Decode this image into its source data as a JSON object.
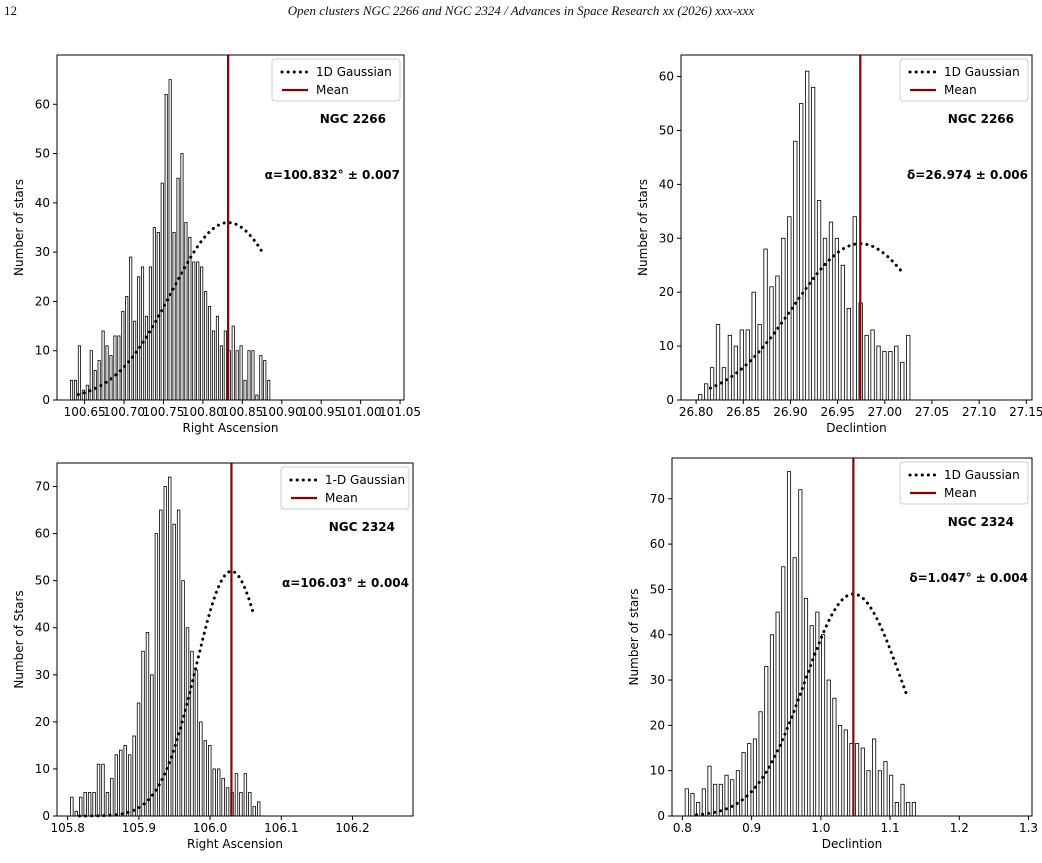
{
  "header": {
    "page_number": "12",
    "running_title": "Open clusters NGC 2266 and NGC 2324 / Advances in Space Research xx (2026) xxx-xxx"
  },
  "colors": {
    "bar_edge": "#000000",
    "bar_fill": "#ffffff",
    "mean_line": "#8b0000",
    "gaussian": "#000000"
  },
  "chart_data": [
    {
      "id": "ngc2266-ra",
      "type": "bar",
      "cluster_label": "NGC 2266",
      "xlabel": "Right Ascension",
      "ylabel": "Number of stars",
      "xlim": [
        100.615,
        101.055
      ],
      "ylim": [
        0,
        70
      ],
      "xticks": [
        100.65,
        100.7,
        100.75,
        100.8,
        100.85,
        100.9,
        100.95,
        101.0,
        101.05
      ],
      "xtick_labels": [
        "100.65",
        "100.70",
        "100.75",
        "100.80",
        "100.85",
        "100.90",
        "100.95",
        "101.00",
        "101.05"
      ],
      "yticks": [
        0,
        10,
        20,
        30,
        40,
        50,
        60
      ],
      "bin_start": 100.632,
      "bin_width": 0.005,
      "counts": [
        4,
        4,
        11,
        2,
        3,
        10,
        6,
        8,
        14,
        11,
        9,
        13,
        13,
        18,
        21,
        29,
        16,
        25,
        27,
        17,
        27,
        35,
        34,
        44,
        62,
        65,
        34,
        45,
        50,
        36,
        33,
        28,
        28,
        27,
        22,
        19,
        14,
        17,
        11,
        14,
        10,
        15,
        10,
        11,
        4,
        10,
        10,
        1,
        9,
        8,
        4
      ],
      "mean": 100.832,
      "gaussian": {
        "amplitude": 36,
        "mu": 100.832,
        "sigma": 0.072
      },
      "annotation": "α=100.832° ± 0.007",
      "legend": [
        {
          "label": "1D Gaussian",
          "style": "dotted"
        },
        {
          "label": "Mean",
          "style": "solid"
        }
      ],
      "legend_position": "top-right"
    },
    {
      "id": "ngc2266-dec",
      "type": "bar",
      "cluster_label": "NGC 2266",
      "xlabel": "Declintion",
      "ylabel": "Number of stars",
      "xlim": [
        26.784,
        27.156
      ],
      "ylim": [
        0,
        64
      ],
      "xticks": [
        26.8,
        26.85,
        26.9,
        26.95,
        27.0,
        27.05,
        27.1,
        27.15
      ],
      "xtick_labels": [
        "26.80",
        "26.85",
        "26.90",
        "26.95",
        "27.00",
        "27.05",
        "27.10",
        "27.15"
      ],
      "yticks": [
        0,
        10,
        20,
        30,
        40,
        50,
        60
      ],
      "bin_start": 26.8025,
      "bin_width": 0.0063,
      "counts": [
        1,
        3,
        6,
        14,
        6,
        12,
        10,
        13,
        13,
        20,
        14,
        28,
        21,
        23,
        30,
        34,
        48,
        55,
        61,
        58,
        37,
        30,
        33,
        30,
        25,
        17,
        34,
        18,
        12,
        13,
        10,
        9,
        9,
        10,
        7,
        12
      ],
      "mean": 26.974,
      "gaussian": {
        "amplitude": 29,
        "mu": 26.974,
        "sigma": 0.07
      },
      "annotation": "δ=26.974 ± 0.006",
      "legend": [
        {
          "label": "1D Gaussian",
          "style": "dotted"
        },
        {
          "label": "Mean",
          "style": "solid"
        }
      ],
      "legend_position": "top-right"
    },
    {
      "id": "ngc2324-ra",
      "type": "bar",
      "cluster_label": "NGC 2324",
      "xlabel": "Right Ascension",
      "ylabel": "Number of Stars",
      "xlim": [
        105.785,
        106.285
      ],
      "ylim": [
        0,
        75
      ],
      "xticks": [
        105.8,
        105.9,
        106.0,
        106.1,
        106.2
      ],
      "xtick_labels": [
        "105.8",
        "105.9",
        "106.0",
        "106.1",
        "106.2"
      ],
      "yticks": [
        0,
        10,
        20,
        30,
        40,
        50,
        60,
        70
      ],
      "bin_start": 105.804,
      "bin_width": 0.00625,
      "counts": [
        4,
        1,
        4,
        5,
        5,
        5,
        11,
        11,
        5,
        8,
        13,
        14,
        15,
        13,
        17,
        24,
        35,
        39,
        30,
        60,
        65,
        70,
        72,
        62,
        65,
        50,
        40,
        35,
        31,
        20,
        16,
        15,
        10,
        10,
        8,
        6,
        5,
        9,
        5,
        9,
        5,
        2,
        3
      ],
      "mean": 106.03,
      "gaussian": {
        "amplitude": 52,
        "mu": 106.03,
        "sigma": 0.05
      },
      "annotation": "α=106.03° ± 0.004",
      "legend": [
        {
          "label": "1-D Gaussian",
          "style": "dotted"
        },
        {
          "label": "Mean",
          "style": "solid"
        }
      ],
      "legend_position": "top-right"
    },
    {
      "id": "ngc2324-dec",
      "type": "bar",
      "cluster_label": "NGC 2324",
      "xlabel": "Declintion",
      "ylabel": "Number of stars",
      "xlim": [
        0.785,
        1.305
      ],
      "ylim": [
        0,
        79
      ],
      "xticks": [
        0.8,
        0.9,
        1.0,
        1.1,
        1.2,
        1.3
      ],
      "xtick_labels": [
        "0.8",
        "0.9",
        "1.0",
        "1.1",
        "1.2",
        "1.3"
      ],
      "yticks": [
        0,
        10,
        20,
        30,
        40,
        50,
        60,
        70
      ],
      "bin_start": 0.804,
      "bin_width": 0.0082,
      "counts": [
        6,
        5,
        3,
        6,
        11,
        7,
        7,
        9,
        8,
        10,
        14,
        16,
        17,
        23,
        33,
        40,
        45,
        55,
        76,
        57,
        72,
        48,
        42,
        45,
        40,
        30,
        26,
        20,
        19,
        16,
        16,
        15,
        10,
        17,
        10,
        12,
        9,
        3,
        7,
        3,
        3
      ],
      "mean": 1.047,
      "gaussian": {
        "amplitude": 49,
        "mu": 1.047,
        "sigma": 0.07
      },
      "annotation": "δ=1.047° ± 0.004",
      "legend": [
        {
          "label": "1D Gaussian",
          "style": "dotted"
        },
        {
          "label": "Mean",
          "style": "solid"
        }
      ],
      "legend_position": "top-right"
    }
  ]
}
